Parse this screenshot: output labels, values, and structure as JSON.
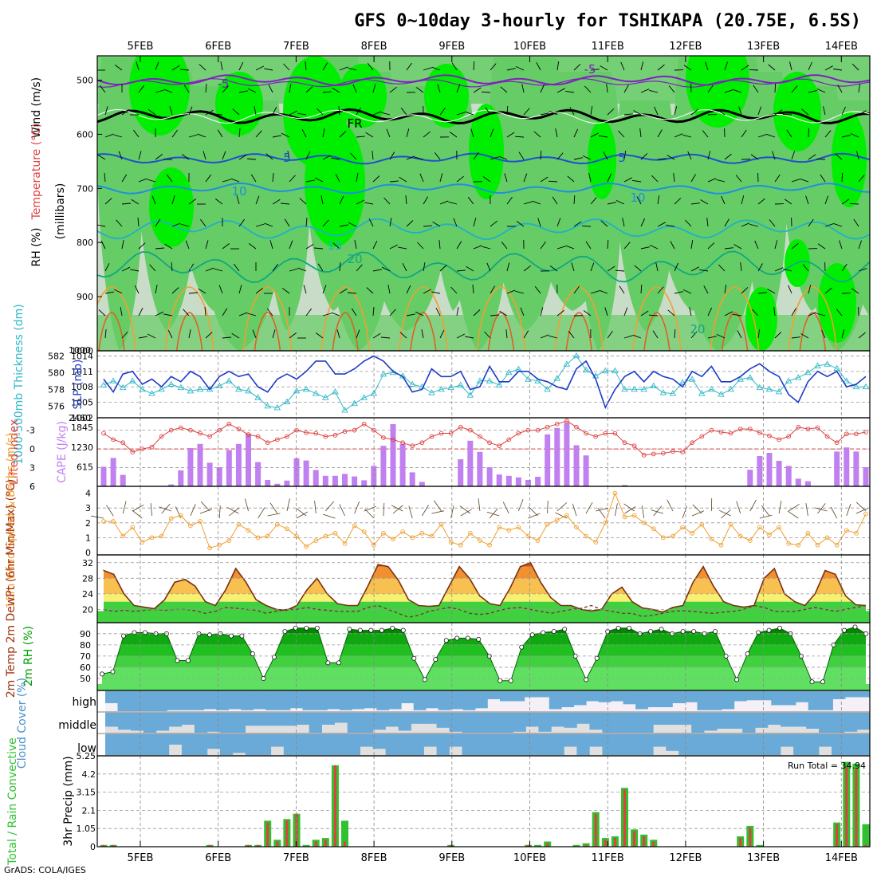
{
  "title": "GFS 0~10day 3-hourly for TSHIKAPA (20.75E, 6.5S)",
  "dates": [
    "5FEB",
    "6FEB",
    "7FEB",
    "8FEB",
    "9FEB",
    "10FEB",
    "11FEB",
    "12FEB",
    "13FEB",
    "14FEB"
  ],
  "credit": "GrADS: COLA/IGES",
  "colors": {
    "rh_light": "#c8dcc8",
    "rh_mid": "#66cc66",
    "rh_dark": "#00ee00",
    "slp": "#1e3cc8",
    "thickness": "#30b8c8",
    "li": "#e04040",
    "cape": "#c080f0",
    "wind": "#f0a030",
    "temp_hot": "#e05000",
    "rh2m": "#00a000",
    "cloud": "#6aaad8",
    "precip_total": "#30c030",
    "precip_conv": "#e04040"
  },
  "panels": {
    "upper_air": {
      "ylabels": [
        "RH (%)",
        "Temperature (°C)",
        "Wind (m/s)",
        "(millibars)"
      ],
      "yticks": [
        "500",
        "600",
        "700",
        "800",
        "900",
        "1000"
      ],
      "contour_labels": [
        "-5",
        "-5",
        "FR",
        "5",
        "5",
        "10",
        "10",
        "15",
        "20",
        "20"
      ]
    },
    "slp_thickness": {
      "ylabel_left": "1000-500mb Thickness (dm)",
      "ylabel_right": "SLP (mb)",
      "yticks_left": [
        "582",
        "580",
        "578",
        "576"
      ],
      "yticks_right": [
        "1014",
        "1011",
        "1008",
        "1005",
        "1002"
      ],
      "top_tick": "1000",
      "bottom_tick": "2460"
    },
    "cape_li": {
      "ylabel_left": "Lifted Index",
      "ylabel_right": "CAPE (J/kg)",
      "yticks_left": [
        "-3",
        "0",
        "3",
        "6"
      ],
      "yticks_right": [
        "1845",
        "1230",
        "615"
      ]
    },
    "wind10m": {
      "ylabel": "10m Wind Speed & Barbs (m/s)",
      "yticks": [
        "4",
        "3",
        "2",
        "1",
        "0"
      ]
    },
    "temp2m": {
      "ylabel": "2m Temp 2m DewPt (6hr Min/Max) (°C)",
      "yticks": [
        "32",
        "28",
        "24",
        "20"
      ]
    },
    "rh2m": {
      "ylabel": "2m RH (%)",
      "yticks": [
        "90",
        "80",
        "70",
        "60",
        "50"
      ]
    },
    "cloud": {
      "ylabel": "Cloud Cover (%)",
      "levels": [
        "high",
        "middle",
        "low"
      ]
    },
    "precip": {
      "ylabel_left": "Total / Rain Convective",
      "ylabel_right": "3hr Precip (mm)",
      "yticks": [
        "5.25",
        "4.2",
        "3.15",
        "2.1",
        "1.05",
        "0"
      ],
      "run_total": "Run Total = 34.94"
    }
  },
  "chart_data": {
    "type": "line",
    "x_start": "2025-02-04T15:00",
    "x_step_hours": 3,
    "slp_mb": [
      1009.5,
      1007,
      1010.5,
      1011,
      1008.5,
      1009.5,
      1008,
      1010,
      1009,
      1011,
      1010,
      1007.5,
      1010,
      1011,
      1010,
      1010.5,
      1008,
      1007,
      1009.5,
      1010.5,
      1009.5,
      1011,
      1013,
      1013,
      1010.5,
      1010.5,
      1011.5,
      1013,
      1014,
      1013,
      1011,
      1010,
      1007,
      1007.5,
      1011.5,
      1010,
      1010,
      1011,
      1007.5,
      1008,
      1012,
      1009,
      1009,
      1011,
      1011,
      1009.5,
      1009,
      1008,
      1007.5,
      1011.5,
      1013,
      1009.5,
      1004,
      1007.5,
      1010,
      1011,
      1009,
      1011,
      1010,
      1009.5,
      1008,
      1011,
      1010,
      1012,
      1009,
      1009,
      1010,
      1011.5,
      1012.5,
      1011,
      1010,
      1006.5,
      1005,
      1009,
      1011,
      1010,
      1011,
      1008,
      1008.5,
      1010
    ],
    "thickness_dm": [
      578.5,
      579,
      578.2,
      579,
      578,
      577.5,
      578,
      578.6,
      578.2,
      577.8,
      578,
      578,
      578.4,
      579,
      578,
      577.8,
      577,
      576,
      575.8,
      576.5,
      577.8,
      578,
      577.5,
      577,
      577.7,
      575.5,
      576.3,
      577,
      577.5,
      579.8,
      580,
      579.6,
      578.6,
      578.3,
      577.6,
      578,
      578.2,
      578.5,
      577.3,
      579,
      579,
      578.5,
      580,
      580.4,
      579.2,
      579,
      578,
      579.3,
      581,
      582,
      580.3,
      579.6,
      580.2,
      580.2,
      578,
      578,
      578,
      578.4,
      577.6,
      577.5,
      578.8,
      579.2,
      577.5,
      578,
      577.4,
      578,
      579.2,
      579.4,
      578.2,
      578,
      577.7,
      579,
      579.4,
      580,
      580.8,
      581,
      580.5,
      579,
      578.3,
      578.3
    ],
    "lifted_index": [
      -2.5,
      -1.5,
      -1,
      0.5,
      0,
      -0.3,
      -2,
      -3,
      -3.4,
      -3,
      -2.5,
      -2,
      -3,
      -4,
      -3.2,
      -2.3,
      -2,
      -1,
      -1.5,
      -2,
      -3,
      -2.6,
      -2.5,
      -2,
      -2.2,
      -2.8,
      -3,
      -4,
      -3,
      -1.8,
      -1.5,
      -1,
      -0.5,
      -1,
      -2,
      -2.5,
      -2.5,
      -3.5,
      -3,
      -2,
      -1,
      -0.5,
      -1.5,
      -2.5,
      -3,
      -3,
      -3.5,
      -4,
      -4.5,
      -3.5,
      -2.5,
      -2,
      -2.5,
      -2.5,
      -1,
      -0.5,
      1,
      0.8,
      0.7,
      0.4,
      0.5,
      -1,
      -2,
      -3,
      -2.7,
      -2.5,
      -3.2,
      -3.2,
      -2.6,
      -2.1,
      -1.5,
      -2,
      -3.5,
      -3.2,
      -3.4,
      -2,
      -1,
      -2.4,
      -2.4,
      -2.7
    ],
    "cape_jkg": [
      615,
      890,
      360,
      0,
      0,
      0,
      0,
      60,
      500,
      1200,
      1330,
      740,
      600,
      1140,
      1330,
      1650,
      760,
      200,
      80,
      180,
      880,
      810,
      510,
      330,
      330,
      390,
      310,
      190,
      640,
      1270,
      1950,
      1330,
      440,
      140,
      0,
      0,
      0,
      850,
      1430,
      1080,
      600,
      370,
      330,
      280,
      200,
      300,
      1630,
      1830,
      1990,
      1290,
      970,
      0,
      0,
      0,
      40,
      0,
      0,
      0,
      0,
      0,
      0,
      0,
      0,
      0,
      0,
      0,
      0,
      520,
      950,
      1050,
      800,
      640,
      240,
      160,
      0,
      0,
      1090,
      1220,
      1090,
      600
    ],
    "wind10m_ms": [
      2.1,
      2.1,
      1.1,
      1.7,
      0.7,
      1,
      1.1,
      2.3,
      2.5,
      1.8,
      2.1,
      0.3,
      0.5,
      0.8,
      1.9,
      1.5,
      1,
      1.1,
      1.9,
      1.6,
      1.1,
      0.4,
      0.8,
      1.1,
      1.3,
      0.6,
      1.8,
      1.4,
      0.5,
      1.3,
      0.9,
      1.4,
      1,
      1.3,
      1.1,
      1.9,
      0.7,
      0.5,
      1.3,
      0.8,
      0.5,
      1.7,
      1.5,
      1.7,
      1.1,
      0.8,
      1.9,
      2.2,
      2.5,
      1.7,
      1.1,
      0.7,
      2,
      4,
      2.4,
      2.5,
      2,
      1.6,
      1,
      1.1,
      1.7,
      1.3,
      1.9,
      0.9,
      0.5,
      1.9,
      1.1,
      0.8,
      1.7,
      1.2,
      1.7,
      0.6,
      0.5,
      1.3,
      0.5,
      1,
      0.5,
      1.5,
      1.3,
      2.6
    ],
    "temp2m_c": [
      30,
      29,
      24,
      21,
      20.6,
      20.2,
      22.5,
      27,
      27.7,
      26,
      22,
      21,
      25,
      30.5,
      27,
      22.5,
      21,
      20,
      19.8,
      21,
      25,
      28,
      24,
      21.5,
      21,
      21,
      26,
      31.5,
      31,
      27.5,
      22.5,
      21,
      20.8,
      21,
      26,
      31,
      28,
      23.5,
      21.5,
      21,
      25.5,
      31,
      32,
      27,
      23,
      21,
      21,
      20,
      19.6,
      20,
      24,
      25.7,
      22,
      20.4,
      20,
      19.3,
      20.5,
      21,
      27,
      31,
      26,
      22,
      21,
      20.6,
      21,
      28,
      30.5,
      24,
      22,
      21,
      24,
      30,
      29,
      23.5,
      21.2,
      21
    ],
    "dewpt2m_c": [
      20,
      19.5,
      19.8,
      19.5,
      19.8,
      20,
      19.8,
      20,
      20,
      19.7,
      19,
      19.5,
      20.5,
      20.3,
      20,
      19.8,
      19,
      19.5,
      20,
      20,
      20.5,
      20,
      19.8,
      19.5,
      19.5,
      19.5,
      20.5,
      21,
      20,
      19,
      18,
      18.5,
      19.5,
      20,
      20.5,
      20,
      19,
      18.7,
      19,
      19.8,
      20.3,
      20.5,
      20,
      19.5,
      19,
      19.5,
      20,
      20.3,
      21,
      20,
      19.5,
      19,
      19,
      18.2,
      18.5,
      19,
      19.5,
      19.7,
      19.5,
      19.2,
      19,
      19.3,
      19.5,
      20,
      21,
      20.5,
      19.5,
      19.5,
      19.5,
      20,
      20.5,
      20,
      19.5,
      20,
      20.5,
      21
    ],
    "rh2m_pct": [
      54,
      56,
      88,
      91,
      91,
      90,
      90,
      66,
      66,
      90,
      89,
      90,
      88,
      88,
      72,
      50,
      69,
      92,
      95,
      95,
      95,
      64,
      64,
      94,
      93,
      93,
      93,
      95,
      93,
      68,
      49,
      67,
      84,
      86,
      86,
      85,
      70,
      48,
      48,
      78,
      89,
      91,
      92,
      94,
      70,
      49,
      68,
      92,
      95,
      95,
      90,
      92,
      94,
      90,
      92,
      92,
      90,
      92,
      70,
      49,
      72,
      91,
      93,
      95,
      90,
      70,
      47,
      47,
      80,
      93,
      96,
      90
    ],
    "cloud_high_pct": [
      60,
      100,
      100,
      100,
      100,
      95,
      95,
      95,
      90,
      95,
      90,
      95,
      90,
      95,
      95,
      85,
      95,
      95,
      90,
      95,
      90,
      85,
      95,
      90,
      60,
      95,
      85,
      95,
      90,
      95,
      85,
      40,
      50,
      50,
      30,
      30,
      90,
      80,
      70,
      50,
      55,
      50,
      65,
      90,
      80,
      80,
      60,
      55,
      95,
      95,
      90,
      50,
      45,
      45,
      70,
      70,
      55,
      95,
      95,
      40,
      30,
      30
    ],
    "cloud_mid_pct": [
      70,
      85,
      90,
      100,
      90,
      70,
      60,
      100,
      95,
      100,
      100,
      65,
      65,
      65,
      65,
      60,
      100,
      60,
      50,
      100,
      100,
      85,
      70,
      90,
      55,
      55,
      75,
      95,
      100,
      100,
      100,
      100,
      95,
      70,
      95,
      70,
      75,
      55,
      85,
      100,
      100,
      100,
      100,
      60,
      60,
      60,
      100,
      90,
      80,
      80,
      100,
      75,
      60,
      70,
      70,
      80,
      100,
      100,
      95,
      85
    ],
    "cloud_low_pct": [
      100,
      100,
      100,
      100,
      100,
      50,
      100,
      100,
      70,
      100,
      90,
      100,
      100,
      60,
      100,
      100,
      100,
      100,
      100,
      100,
      60,
      70,
      100,
      100,
      100,
      60,
      100,
      60,
      100,
      100,
      100,
      100,
      100,
      100,
      100,
      100,
      60,
      100,
      60,
      100,
      100,
      100,
      100,
      60,
      80,
      100,
      100,
      100,
      100,
      100,
      100,
      100,
      100,
      60,
      100,
      100,
      60,
      100,
      100,
      100
    ],
    "precip_total_mm": [
      0.1,
      0.1,
      0,
      0,
      0,
      0,
      0,
      0,
      0,
      0,
      0,
      0.1,
      0,
      0,
      0,
      0.1,
      0.1,
      1.5,
      0.4,
      1.6,
      1.9,
      0.1,
      0.4,
      0.5,
      4.7,
      1.5,
      0,
      0,
      0,
      0,
      0,
      0,
      0,
      0,
      0,
      0,
      0.1,
      0,
      0,
      0,
      0,
      0,
      0,
      0,
      0.1,
      0.1,
      0.3,
      0,
      0,
      0.1,
      0.2,
      2,
      0.5,
      0.6,
      3.4,
      1,
      0.7,
      0.4,
      0,
      0,
      0,
      0,
      0,
      0,
      0,
      0,
      0.6,
      1.2,
      0.1,
      0,
      0,
      0,
      0,
      0,
      0,
      0,
      1.4,
      4.9,
      4.8,
      1.3
    ],
    "precip_conv_mm": [
      0.1,
      0.1,
      0,
      0,
      0,
      0,
      0,
      0,
      0,
      0,
      0,
      0.1,
      0,
      0,
      0,
      0.1,
      0.1,
      1.4,
      0.3,
      1.5,
      1.9,
      0,
      0.3,
      0.4,
      4.7,
      0.3,
      0,
      0,
      0,
      0,
      0,
      0,
      0,
      0,
      0,
      0,
      0.1,
      0,
      0,
      0,
      0,
      0,
      0,
      0,
      0.1,
      0,
      0.2,
      0,
      0,
      0,
      0.1,
      1.9,
      0.4,
      0.5,
      3.3,
      0.9,
      0.6,
      0.3,
      0,
      0,
      0,
      0,
      0,
      0,
      0,
      0,
      0.5,
      1.1,
      0,
      0,
      0,
      0,
      0,
      0,
      0,
      0,
      1.3,
      4.6,
      4.5,
      0.1
    ]
  }
}
